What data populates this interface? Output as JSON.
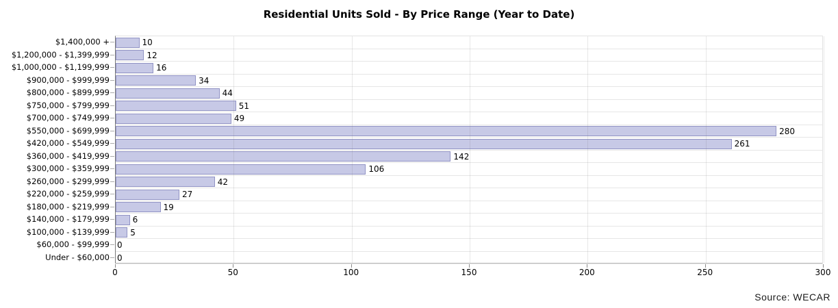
{
  "title": "Residential Units Sold - By Price Range (Year to Date)",
  "source_credit": "Source: WECAR",
  "colors": {
    "bar_fill": "#c7c9e6",
    "bar_border": "#9193c4",
    "gridline": "#e2e2e2",
    "row_separator": "#e6e6e6",
    "y_axis_line": "#7a7a7a",
    "text": "#000000",
    "background": "#ffffff"
  },
  "chart_data": {
    "type": "bar",
    "orientation": "horizontal",
    "title": "Residential Units Sold - By Price Range (Year to Date)",
    "xlabel": "",
    "ylabel": "",
    "xlim": [
      0,
      300
    ],
    "x_ticks": [
      0,
      50,
      100,
      150,
      200,
      250,
      300
    ],
    "grid": true,
    "legend": "none",
    "categories": [
      "$1,400,000 +",
      "$1,200,000 - $1,399,999",
      "$1,000,000 - $1,199,999",
      "$900,000 - $999,999",
      "$800,000 - $899,999",
      "$750,000 - $799,999",
      "$700,000 - $749,999",
      "$550,000 - $699,999",
      "$420,000 - $549,999",
      "$360,000 - $419,999",
      "$300,000 - $359,999",
      "$260,000 - $299,999",
      "$220,000 - $259,999",
      "$180,000 - $219,999",
      "$140,000 - $179,999",
      "$100,000 - $139,999",
      "$60,000 - $99,999",
      "Under - $60,000"
    ],
    "values": [
      10,
      12,
      16,
      34,
      44,
      51,
      49,
      280,
      261,
      142,
      106,
      42,
      27,
      19,
      6,
      5,
      0,
      0
    ]
  }
}
